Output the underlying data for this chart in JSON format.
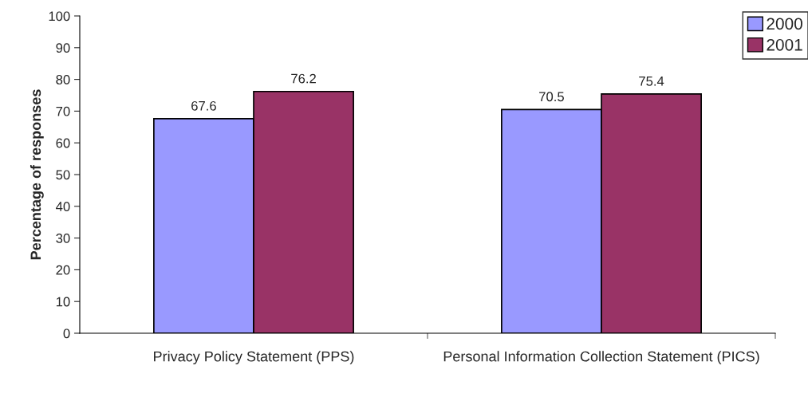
{
  "chart_data": {
    "type": "bar",
    "ylabel": "Percentage of responses",
    "categories": [
      "Privacy Policy Statement (PPS)",
      "Personal Information Collection Statement (PICS)"
    ],
    "series": [
      {
        "name": "2000",
        "color": "#9999ff",
        "values": [
          67.6,
          70.5
        ]
      },
      {
        "name": "2001",
        "color": "#993366",
        "values": [
          76.2,
          75.4
        ]
      }
    ],
    "ylim": [
      0,
      100
    ],
    "yticks": [
      0,
      10,
      20,
      30,
      40,
      50,
      60,
      70,
      80,
      90,
      100
    ],
    "data_labels": true,
    "grid": false,
    "legend": "top right"
  }
}
